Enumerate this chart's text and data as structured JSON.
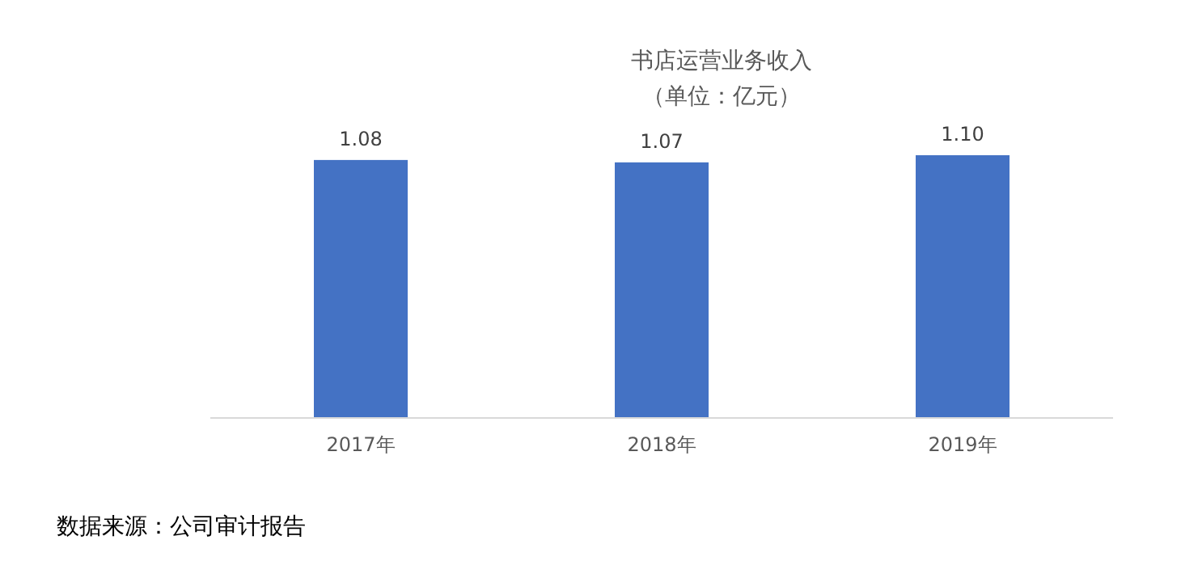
{
  "chart_data": {
    "type": "bar",
    "title": "书店运营业务收入",
    "subtitle": "（单位：亿元）",
    "categories": [
      "2017年",
      "2018年",
      "2019年"
    ],
    "values": [
      1.08,
      1.07,
      1.1
    ],
    "value_labels": [
      "1.08",
      "1.07",
      "1.10"
    ],
    "color": "#4472c4",
    "tick_labels": "x",
    "annotations": [
      "数据来源：公司审计报告"
    ]
  }
}
